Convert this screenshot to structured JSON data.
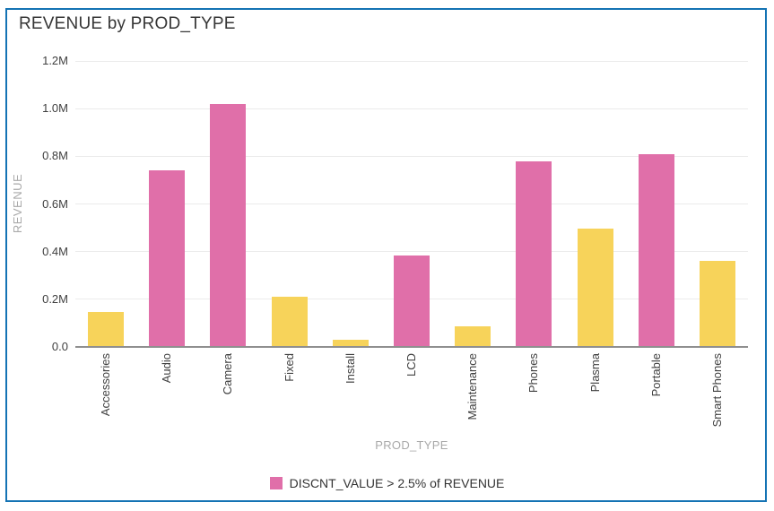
{
  "chart_data": {
    "type": "bar",
    "title": "REVENUE by PROD_TYPE",
    "xlabel": "PROD_TYPE",
    "ylabel": "REVENUE",
    "ylim": [
      0,
      1200000
    ],
    "grid": true,
    "legend_position": "bottom-center",
    "ytick_labels": [
      "0.0",
      "0.2M",
      "0.4M",
      "0.6M",
      "0.8M",
      "1.0M",
      "1.2M"
    ],
    "ytick_values": [
      0,
      200000,
      400000,
      600000,
      800000,
      1000000,
      1200000
    ],
    "categories": [
      "Accessories",
      "Audio",
      "Camera",
      "Fixed",
      "Install",
      "LCD",
      "Maintenance",
      "Phones",
      "Plasma",
      "Portable",
      "Smart Phones"
    ],
    "values": [
      145000,
      740000,
      1020000,
      210000,
      30000,
      385000,
      85000,
      780000,
      495000,
      810000,
      360000
    ],
    "highlight_flags": [
      false,
      true,
      true,
      false,
      false,
      true,
      false,
      true,
      false,
      true,
      false
    ],
    "legend": {
      "label": "DISCNT_VALUE > 2.5% of REVENUE"
    },
    "colors": {
      "highlight": "#e06fa9",
      "default": "#f7d35a",
      "frame_border": "#1473b4"
    }
  }
}
